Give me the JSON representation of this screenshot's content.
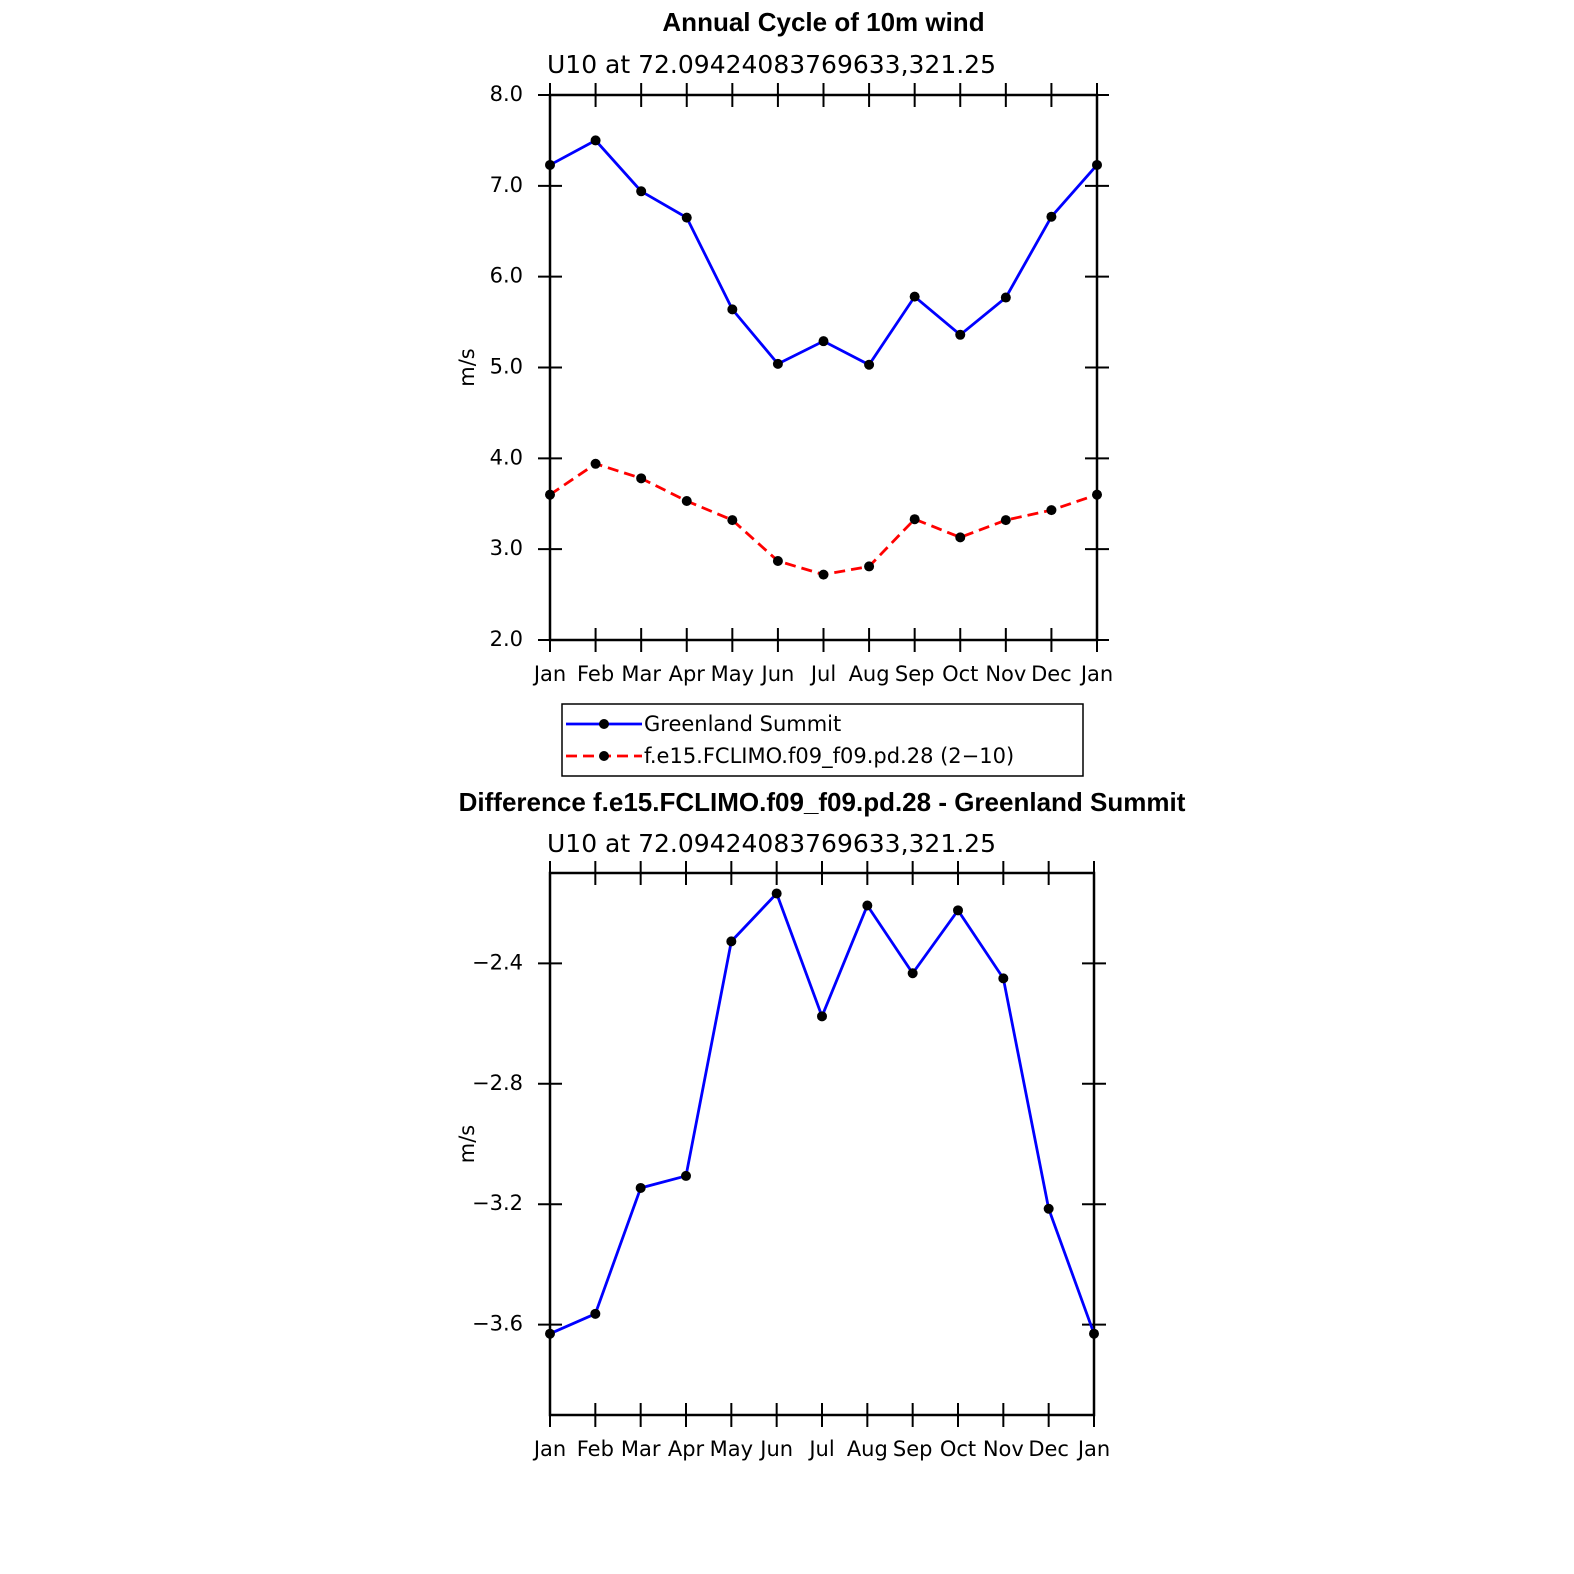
{
  "chart_data": [
    {
      "type": "line",
      "title": "Annual Cycle of 10m wind",
      "subtitle": "U10 at 72.09424083769633,321.25",
      "ylabel": "m/s",
      "categories": [
        "Jan",
        "Feb",
        "Mar",
        "Apr",
        "May",
        "Jun",
        "Jul",
        "Aug",
        "Sep",
        "Oct",
        "Nov",
        "Dec",
        "Jan"
      ],
      "series": [
        {
          "name": "Greenland Summit",
          "color": "#0000ff",
          "dashed": false,
          "values": [
            7.23,
            7.5,
            6.94,
            6.65,
            5.64,
            5.04,
            5.29,
            5.03,
            5.78,
            5.36,
            5.77,
            6.66,
            7.23
          ]
        },
        {
          "name": "f.e15.FCLIMO.f09_f09.pd.28 (2−10)",
          "color": "#ff0000",
          "dashed": true,
          "values": [
            3.6,
            3.94,
            3.78,
            3.53,
            3.32,
            2.87,
            2.72,
            2.81,
            3.33,
            3.13,
            3.32,
            3.43,
            3.6
          ]
        }
      ],
      "ylim": [
        2,
        8
      ],
      "yticks": [
        {
          "value": 2,
          "label": "2.0"
        },
        {
          "value": 3,
          "label": "3.0"
        },
        {
          "value": 4,
          "label": "4.0"
        },
        {
          "value": 5,
          "label": "5.0"
        },
        {
          "value": 6,
          "label": "6.0"
        },
        {
          "value": 7,
          "label": "7.0"
        },
        {
          "value": 8,
          "label": "8.0"
        }
      ],
      "legend": true
    },
    {
      "type": "line",
      "title": "Difference f.e15.FCLIMO.f09_f09.pd.28 - Greenland Summit",
      "subtitle": "U10 at 72.09424083769633,321.25",
      "ylabel": "m/s",
      "categories": [
        "Jan",
        "Feb",
        "Mar",
        "Apr",
        "May",
        "Jun",
        "Jul",
        "Aug",
        "Sep",
        "Oct",
        "Nov",
        "Dec",
        "Jan"
      ],
      "series": [
        {
          "color": "#0000ff",
          "dashed": false,
          "values": [
            -3.63,
            -3.564,
            -3.146,
            -3.106,
            -2.327,
            -2.168,
            -2.576,
            -2.208,
            -2.433,
            -2.224,
            -2.45,
            -3.215,
            -3.63
          ]
        }
      ],
      "ylim": [
        -3.9,
        -2.1
      ],
      "yticks": [
        {
          "value": -3.6,
          "label": "−3.6"
        },
        {
          "value": -3.2,
          "label": "−3.2"
        },
        {
          "value": -2.8,
          "label": "−2.8"
        },
        {
          "value": -2.4,
          "label": "−2.4"
        }
      ],
      "legend": false
    }
  ]
}
